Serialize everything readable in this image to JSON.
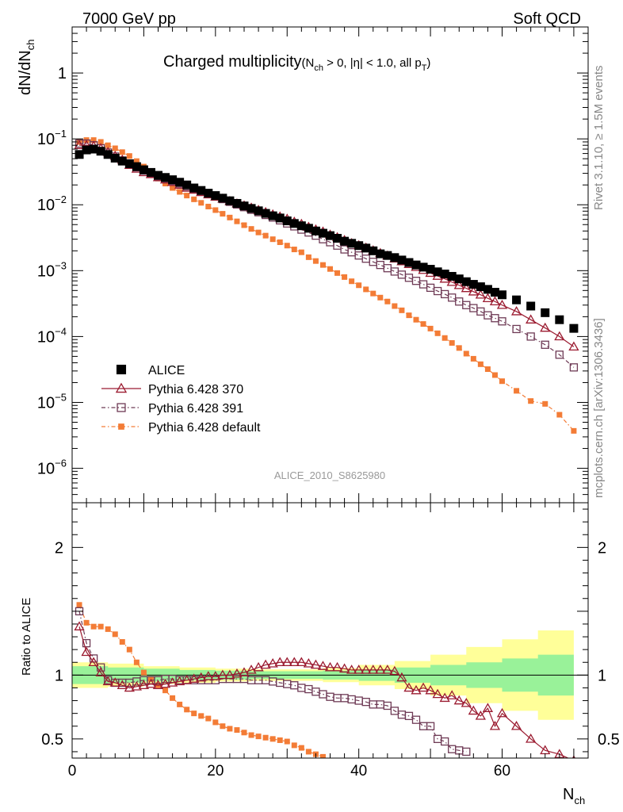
{
  "header": {
    "left": "7000 GeV pp",
    "right": "Soft QCD"
  },
  "side_labels": {
    "rivet": "Rivet 3.1.10, ≥ 1.5M events",
    "mcplots": "mcplots.cern.ch [arXiv:1306.3436]"
  },
  "colors": {
    "alice": "#000000",
    "p370": "#9b1b30",
    "p391": "#6e3a55",
    "pdef": "#f37c36",
    "band_inner": "#99f299",
    "band_outer": "#ffff99",
    "watermark": "#999999"
  },
  "chart_data": [
    {
      "type": "scatter",
      "title": {
        "main": "Charged multiplicity",
        "detail": "(N",
        "detail_sub": "ch",
        "detail_rest": " > 0, |η| < 1.0, all p",
        "detail_sub2": "T",
        "detail_close": ")"
      },
      "ylabel": {
        "main": "dN/dN",
        "sub": "ch"
      },
      "yscale": "log",
      "ylim": [
        3e-07,
        5
      ],
      "xlim": [
        0,
        72
      ],
      "yticks": [
        {
          "value": 1,
          "label": "1"
        },
        {
          "value": 0.1,
          "base": "10",
          "exp": "−1"
        },
        {
          "value": 0.01,
          "base": "10",
          "exp": "−2"
        },
        {
          "value": 0.001,
          "base": "10",
          "exp": "−3"
        },
        {
          "value": 0.0001,
          "base": "10",
          "exp": "−4"
        },
        {
          "value": 1e-05,
          "base": "10",
          "exp": "−5"
        },
        {
          "value": 1e-06,
          "base": "10",
          "exp": "−6"
        }
      ],
      "watermark": "ALICE_2010_S8625980",
      "legend": {
        "position": "bottom-left",
        "entries": [
          {
            "key": "alice",
            "label": "ALICE"
          },
          {
            "key": "p370",
            "label": "Pythia 6.428 370"
          },
          {
            "key": "p391",
            "label": "Pythia 6.428 391"
          },
          {
            "key": "pdef",
            "label": "Pythia 6.428 default"
          }
        ]
      },
      "series": [
        {
          "key": "alice",
          "name": "ALICE",
          "marker": "filled-square",
          "x": [
            1,
            2,
            3,
            4,
            5,
            6,
            7,
            8,
            9,
            10,
            11,
            12,
            13,
            14,
            15,
            16,
            17,
            18,
            19,
            20,
            21,
            22,
            23,
            24,
            25,
            26,
            27,
            28,
            29,
            30,
            31,
            32,
            33,
            34,
            35,
            36,
            37,
            38,
            39,
            40,
            41,
            42,
            43,
            44,
            45,
            46,
            47,
            48,
            49,
            50,
            51,
            52,
            53,
            54,
            55,
            56,
            57,
            58,
            59,
            60,
            62,
            64,
            66,
            68,
            70
          ],
          "values": [
            0.058,
            0.068,
            0.07,
            0.065,
            0.058,
            0.051,
            0.046,
            0.042,
            0.038,
            0.034,
            0.031,
            0.028,
            0.026,
            0.024,
            0.022,
            0.02,
            0.018,
            0.0165,
            0.015,
            0.0138,
            0.0126,
            0.0115,
            0.0105,
            0.0096,
            0.0088,
            0.0081,
            0.0074,
            0.0068,
            0.0063,
            0.0057,
            0.0052,
            0.0048,
            0.0044,
            0.004,
            0.0037,
            0.0034,
            0.0031,
            0.0028,
            0.0026,
            0.0024,
            0.0022,
            0.002,
            0.0018,
            0.0017,
            0.00158,
            0.00145,
            0.00133,
            0.00122,
            0.00113,
            0.00105,
            0.00096,
            0.00089,
            0.00082,
            0.00075,
            0.00068,
            0.00062,
            0.00057,
            0.00052,
            0.00047,
            0.00043,
            0.00036,
            0.00029,
            0.00023,
            0.00018,
            0.000133
          ]
        },
        {
          "key": "p370",
          "name": "Pythia 6.428 370",
          "marker": "open-triangle",
          "x": [
            1,
            2,
            3,
            4,
            5,
            6,
            7,
            8,
            9,
            10,
            11,
            12,
            13,
            14,
            15,
            16,
            17,
            18,
            19,
            20,
            21,
            22,
            23,
            24,
            25,
            26,
            27,
            28,
            29,
            30,
            31,
            32,
            33,
            34,
            35,
            36,
            37,
            38,
            39,
            40,
            41,
            42,
            43,
            44,
            45,
            46,
            47,
            48,
            49,
            50,
            51,
            52,
            53,
            54,
            55,
            56,
            57,
            58,
            59,
            60,
            62,
            64,
            66,
            68,
            70
          ],
          "values": [
            0.08,
            0.08,
            0.078,
            0.072,
            0.063,
            0.055,
            0.048,
            0.04,
            0.035,
            0.031,
            0.029,
            0.026,
            0.024,
            0.022,
            0.02,
            0.018,
            0.0168,
            0.0155,
            0.0143,
            0.0132,
            0.0123,
            0.0113,
            0.0104,
            0.0097,
            0.009,
            0.0083,
            0.0077,
            0.0071,
            0.0066,
            0.0061,
            0.0055,
            0.0051,
            0.0046,
            0.0042,
            0.0039,
            0.0035,
            0.0032,
            0.0029,
            0.0026,
            0.00242,
            0.00222,
            0.00202,
            0.00184,
            0.00168,
            0.00152,
            0.00138,
            0.00125,
            0.00113,
            0.00102,
            0.00092,
            0.00083,
            0.00075,
            0.00067,
            0.0006,
            0.00054,
            0.00048,
            0.00043,
            0.00038,
            0.00034,
            0.0003,
            0.00024,
            0.00018,
            0.000135,
            0.0001,
            7e-05
          ]
        },
        {
          "key": "p391",
          "name": "Pythia 6.428 391",
          "marker": "open-square",
          "x": [
            1,
            2,
            3,
            4,
            5,
            6,
            7,
            8,
            9,
            10,
            11,
            12,
            13,
            14,
            15,
            16,
            17,
            18,
            19,
            20,
            21,
            22,
            23,
            24,
            25,
            26,
            27,
            28,
            29,
            30,
            31,
            32,
            33,
            34,
            35,
            36,
            37,
            38,
            39,
            40,
            41,
            42,
            43,
            44,
            45,
            46,
            47,
            48,
            49,
            50,
            51,
            52,
            53,
            54,
            55,
            56,
            57,
            58,
            59,
            60,
            62,
            64,
            66,
            68,
            70
          ],
          "values": [
            0.085,
            0.085,
            0.08,
            0.072,
            0.062,
            0.054,
            0.047,
            0.042,
            0.037,
            0.033,
            0.03,
            0.027,
            0.025,
            0.023,
            0.021,
            0.019,
            0.0172,
            0.0158,
            0.0145,
            0.0133,
            0.0122,
            0.0111,
            0.0101,
            0.0092,
            0.0084,
            0.0077,
            0.007,
            0.0064,
            0.0058,
            0.0052,
            0.0047,
            0.0042,
            0.0038,
            0.0034,
            0.003,
            0.0027,
            0.0024,
            0.0021,
            0.0019,
            0.0017,
            0.00152,
            0.00136,
            0.00122,
            0.00109,
            0.00097,
            0.00087,
            0.00078,
            0.0007,
            0.00062,
            0.00055,
            0.00049,
            0.00044,
            0.00039,
            0.00034,
            0.0003,
            0.00027,
            0.00024,
            0.00021,
            0.00019,
            0.00017,
            0.00013,
            0.0001,
            7.5e-05,
            5.3e-05,
            3.4e-05
          ]
        },
        {
          "key": "pdef",
          "name": "Pythia 6.428 default",
          "marker": "filled-small-square",
          "x": [
            1,
            2,
            3,
            4,
            5,
            6,
            7,
            8,
            9,
            10,
            11,
            12,
            13,
            14,
            15,
            16,
            17,
            18,
            19,
            20,
            21,
            22,
            23,
            24,
            25,
            26,
            27,
            28,
            29,
            30,
            31,
            32,
            33,
            34,
            35,
            36,
            37,
            38,
            39,
            40,
            41,
            42,
            43,
            44,
            45,
            46,
            47,
            48,
            49,
            50,
            51,
            52,
            53,
            54,
            55,
            56,
            57,
            58,
            59,
            60,
            62,
            64,
            66,
            68,
            70
          ],
          "values": [
            0.09,
            0.096,
            0.096,
            0.09,
            0.08,
            0.072,
            0.063,
            0.055,
            0.046,
            0.038,
            0.03,
            0.025,
            0.021,
            0.018,
            0.0157,
            0.0138,
            0.0121,
            0.0107,
            0.0094,
            0.0083,
            0.0073,
            0.0064,
            0.0056,
            0.0049,
            0.0043,
            0.0038,
            0.0034,
            0.003,
            0.0027,
            0.0024,
            0.0021,
            0.0019,
            0.0016,
            0.0014,
            0.00122,
            0.00106,
            0.00092,
            0.0008,
            0.00069,
            0.0006,
            0.00052,
            0.00045,
            0.00039,
            0.00034,
            0.00029,
            0.00025,
            0.00021,
            0.00018,
            0.000155,
            0.000132,
            0.000112,
            9.5e-05,
            8e-05,
            6.7e-05,
            5.5e-05,
            4.6e-05,
            3.8e-05,
            3.2e-05,
            2.6e-05,
            2.1e-05,
            1.5e-05,
            1.05e-05,
            9.5e-06,
            6.5e-06,
            3.7e-06
          ]
        }
      ]
    },
    {
      "type": "line",
      "ylabel": "Ratio to ALICE",
      "xlabel": {
        "main": "N",
        "sub": "ch"
      },
      "ylim": [
        0.35,
        2.35
      ],
      "xlim": [
        0,
        72
      ],
      "xticks": [
        {
          "value": 0,
          "label": "0"
        },
        {
          "value": 20,
          "label": "20"
        },
        {
          "value": 40,
          "label": "40"
        },
        {
          "value": 60,
          "label": "60"
        }
      ],
      "yticks": [
        {
          "value": 0.5,
          "label": "0.5"
        },
        {
          "value": 1,
          "label": "1"
        },
        {
          "value": 2,
          "label": "2"
        }
      ],
      "bands": {
        "x": [
          0,
          5,
          10,
          15,
          20,
          25,
          30,
          35,
          40,
          45,
          50,
          55,
          60,
          65,
          70
        ],
        "inner": [
          0.07,
          0.06,
          0.05,
          0.04,
          0.035,
          0.03,
          0.03,
          0.035,
          0.045,
          0.06,
          0.08,
          0.1,
          0.13,
          0.16,
          0.2
        ],
        "outer": [
          0.1,
          0.09,
          0.07,
          0.06,
          0.05,
          0.045,
          0.045,
          0.055,
          0.08,
          0.11,
          0.16,
          0.22,
          0.28,
          0.35,
          0.45
        ]
      },
      "series": [
        {
          "key": "p370",
          "name": "Pythia 6.428 370",
          "x": [
            1,
            2,
            3,
            4,
            5,
            6,
            7,
            8,
            9,
            10,
            11,
            12,
            13,
            14,
            15,
            16,
            17,
            18,
            19,
            20,
            21,
            22,
            23,
            24,
            25,
            26,
            27,
            28,
            29,
            30,
            31,
            32,
            33,
            34,
            35,
            36,
            37,
            38,
            39,
            40,
            41,
            42,
            43,
            44,
            45,
            46,
            47,
            48,
            49,
            50,
            51,
            52,
            53,
            54,
            55,
            56,
            57,
            58,
            59,
            60,
            62,
            64,
            66,
            68,
            70
          ],
          "values": [
            1.38,
            1.18,
            1.1,
            1.02,
            0.95,
            0.94,
            0.92,
            0.9,
            0.91,
            0.92,
            0.93,
            0.92,
            0.93,
            0.94,
            0.95,
            0.96,
            0.97,
            0.98,
            0.99,
            0.99,
            1.0,
            1.0,
            1.01,
            1.02,
            1.04,
            1.06,
            1.08,
            1.09,
            1.1,
            1.1,
            1.1,
            1.1,
            1.09,
            1.08,
            1.07,
            1.06,
            1.06,
            1.05,
            1.04,
            1.04,
            1.04,
            1.04,
            1.04,
            1.04,
            1.03,
            0.98,
            0.9,
            0.88,
            0.9,
            0.88,
            0.85,
            0.82,
            0.84,
            0.8,
            0.78,
            0.72,
            0.68,
            0.74,
            0.6,
            0.7,
            0.6,
            0.5,
            0.41,
            0.38,
            0.33
          ]
        },
        {
          "key": "p391",
          "name": "Pythia 6.428 391",
          "x": [
            1,
            2,
            3,
            4,
            5,
            6,
            7,
            8,
            9,
            10,
            11,
            12,
            13,
            14,
            15,
            16,
            17,
            18,
            19,
            20,
            21,
            22,
            23,
            24,
            25,
            26,
            27,
            28,
            29,
            30,
            31,
            32,
            33,
            34,
            35,
            36,
            37,
            38,
            39,
            40,
            41,
            42,
            43,
            44,
            45,
            46,
            47,
            48,
            49,
            50,
            51,
            52,
            53,
            54,
            55
          ],
          "values": [
            1.5,
            1.25,
            1.13,
            1.06,
            0.96,
            0.94,
            0.94,
            0.94,
            0.95,
            0.96,
            0.96,
            0.96,
            0.97,
            0.97,
            0.96,
            0.96,
            0.96,
            0.96,
            0.96,
            0.96,
            0.97,
            0.97,
            0.97,
            0.97,
            0.96,
            0.96,
            0.96,
            0.95,
            0.94,
            0.93,
            0.92,
            0.9,
            0.89,
            0.87,
            0.85,
            0.83,
            0.82,
            0.82,
            0.81,
            0.8,
            0.79,
            0.77,
            0.77,
            0.76,
            0.72,
            0.69,
            0.68,
            0.65,
            0.6,
            0.6,
            0.5,
            0.48,
            0.42,
            0.41,
            0.4
          ]
        },
        {
          "key": "pdef",
          "name": "Pythia 6.428 default",
          "x": [
            1,
            2,
            3,
            4,
            5,
            6,
            7,
            8,
            9,
            10,
            11,
            12,
            13,
            14,
            15,
            16,
            17,
            18,
            19,
            20,
            21,
            22,
            23,
            24,
            25,
            26,
            27,
            28,
            29,
            30,
            31,
            32,
            33,
            34,
            35
          ],
          "values": [
            1.55,
            1.41,
            1.38,
            1.38,
            1.36,
            1.32,
            1.26,
            1.2,
            1.1,
            1.02,
            0.97,
            0.92,
            0.88,
            0.82,
            0.77,
            0.73,
            0.7,
            0.68,
            0.66,
            0.63,
            0.6,
            0.58,
            0.57,
            0.55,
            0.53,
            0.52,
            0.51,
            0.5,
            0.49,
            0.48,
            0.45,
            0.43,
            0.4,
            0.38,
            0.36
          ]
        }
      ]
    }
  ]
}
